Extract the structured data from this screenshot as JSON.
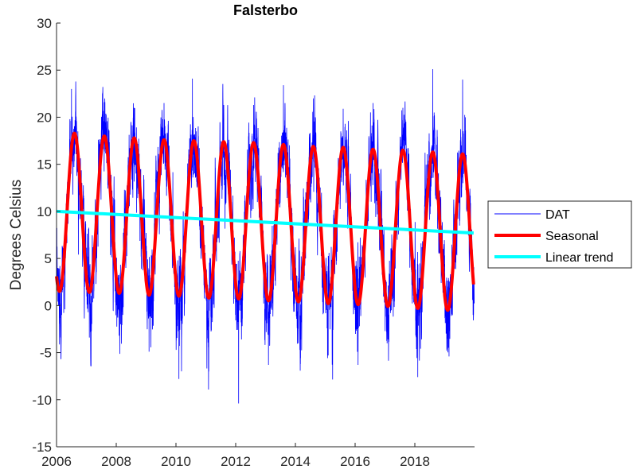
{
  "chart_data": {
    "type": "line",
    "title": "Falsterbo",
    "xlabel": "",
    "ylabel": "Degrees Celsius",
    "xlim": [
      2006,
      2020
    ],
    "ylim": [
      -15,
      30
    ],
    "xticks": [
      2006,
      2008,
      2010,
      2012,
      2014,
      2016,
      2018
    ],
    "yticks": [
      -15,
      -10,
      -5,
      0,
      5,
      10,
      15,
      20,
      25,
      30
    ],
    "grid": false,
    "legend_position": "outside-right",
    "series": [
      {
        "name": "DAT",
        "kind": "daily temperature",
        "color": "#0000ff",
        "range_observed": {
          "min": -10.4,
          "max": 25.1
        },
        "seasonal_extremes": [
          {
            "x": 2006.0,
            "y": -6.4
          },
          {
            "x": 2006.5,
            "y": 23.0
          },
          {
            "x": 2007.1,
            "y": -3.4
          },
          {
            "x": 2007.6,
            "y": 21.6
          },
          {
            "x": 2008.1,
            "y": -3.2
          },
          {
            "x": 2008.6,
            "y": 21.0
          },
          {
            "x": 2009.1,
            "y": -4.9
          },
          {
            "x": 2009.6,
            "y": 21.5
          },
          {
            "x": 2010.1,
            "y": -7.8
          },
          {
            "x": 2010.55,
            "y": 24.1
          },
          {
            "x": 2011.1,
            "y": -7.0
          },
          {
            "x": 2011.6,
            "y": 21.3
          },
          {
            "x": 2012.1,
            "y": -10.4
          },
          {
            "x": 2012.6,
            "y": 21.3
          },
          {
            "x": 2013.1,
            "y": -6.3
          },
          {
            "x": 2013.6,
            "y": 23.4
          },
          {
            "x": 2014.1,
            "y": -4.0
          },
          {
            "x": 2014.6,
            "y": 22.0
          },
          {
            "x": 2015.1,
            "y": -5.3
          },
          {
            "x": 2015.6,
            "y": 20.9
          },
          {
            "x": 2016.1,
            "y": -6.3
          },
          {
            "x": 2016.6,
            "y": 21.5
          },
          {
            "x": 2017.1,
            "y": -3.6
          },
          {
            "x": 2017.6,
            "y": 21.0
          },
          {
            "x": 2018.1,
            "y": -7.6
          },
          {
            "x": 2018.6,
            "y": 25.1
          },
          {
            "x": 2019.1,
            "y": -4.6
          },
          {
            "x": 2019.6,
            "y": 24.0
          },
          {
            "x": 2019.95,
            "y": -1.0
          }
        ]
      },
      {
        "name": "Seasonal",
        "color": "#ff0000",
        "peaks": [
          {
            "x": 2006.6,
            "y": 18.3
          },
          {
            "x": 2007.6,
            "y": 18.0
          },
          {
            "x": 2008.6,
            "y": 17.8
          },
          {
            "x": 2009.6,
            "y": 17.6
          },
          {
            "x": 2010.6,
            "y": 17.5
          },
          {
            "x": 2011.6,
            "y": 17.4
          },
          {
            "x": 2012.6,
            "y": 17.3
          },
          {
            "x": 2013.6,
            "y": 17.1
          },
          {
            "x": 2014.6,
            "y": 16.9
          },
          {
            "x": 2015.6,
            "y": 16.8
          },
          {
            "x": 2016.6,
            "y": 16.6
          },
          {
            "x": 2017.6,
            "y": 16.5
          },
          {
            "x": 2018.6,
            "y": 16.3
          },
          {
            "x": 2019.6,
            "y": 16.1
          }
        ],
        "troughs": [
          {
            "x": 2006.1,
            "y": 1.5
          },
          {
            "x": 2007.1,
            "y": 1.4
          },
          {
            "x": 2008.1,
            "y": 1.3
          },
          {
            "x": 2009.1,
            "y": 1.1
          },
          {
            "x": 2010.1,
            "y": 1.0
          },
          {
            "x": 2011.1,
            "y": 0.8
          },
          {
            "x": 2012.1,
            "y": 0.7
          },
          {
            "x": 2013.1,
            "y": 0.5
          },
          {
            "x": 2014.1,
            "y": 0.4
          },
          {
            "x": 2015.1,
            "y": 0.2
          },
          {
            "x": 2016.1,
            "y": 0.1
          },
          {
            "x": 2017.1,
            "y": -0.1
          },
          {
            "x": 2018.1,
            "y": -0.3
          },
          {
            "x": 2019.1,
            "y": -0.5
          }
        ],
        "start": {
          "x": 2006.0,
          "y": 2.4
        },
        "end": {
          "x": 2019.97,
          "y": 0.3
        }
      },
      {
        "name": "Linear trend",
        "color": "#00ffff",
        "x": [
          2006.0,
          2019.97
        ],
        "values": [
          10.0,
          7.7
        ]
      }
    ]
  }
}
